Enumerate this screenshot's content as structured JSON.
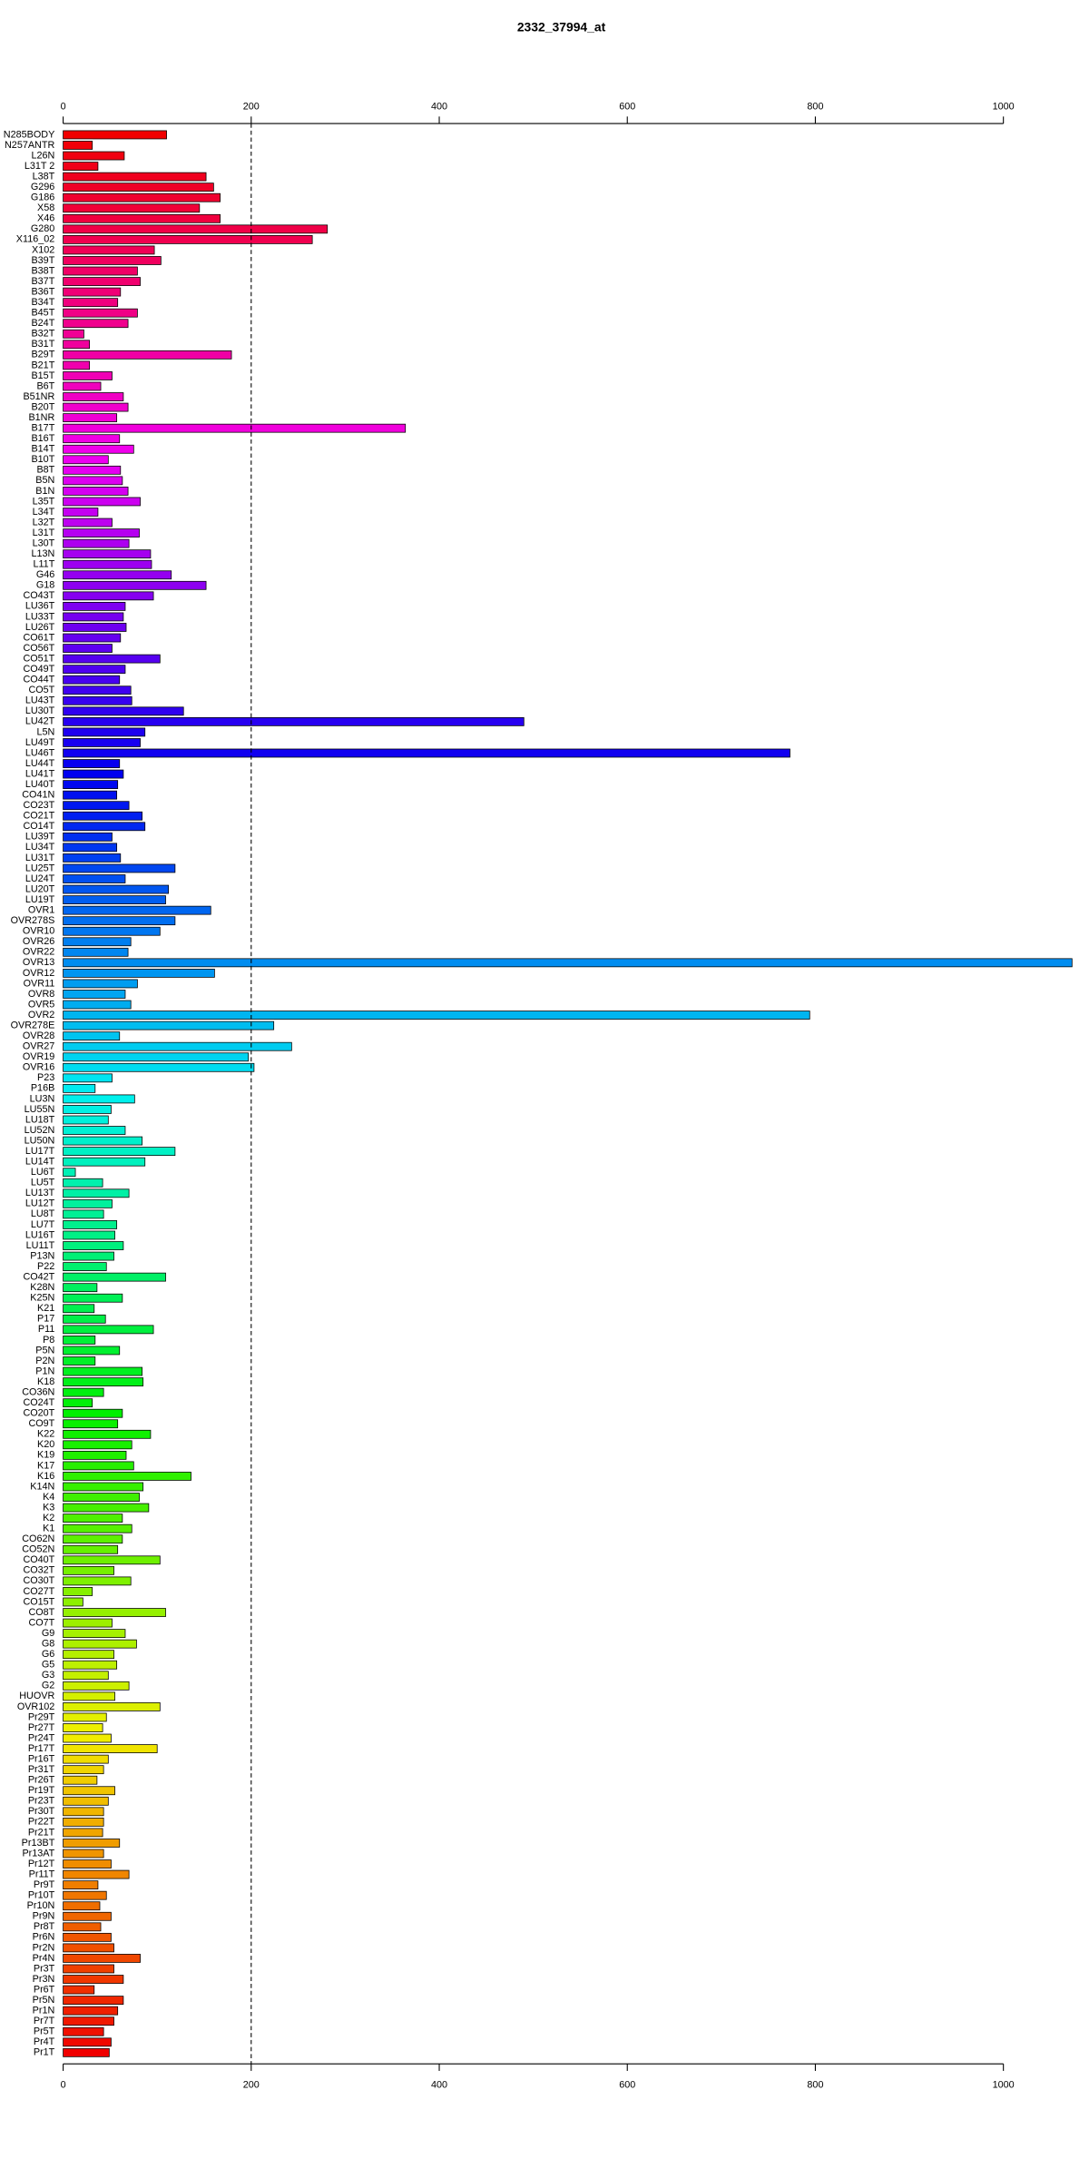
{
  "chart_data": {
    "type": "barh",
    "title": "2332_37994_at",
    "categories": [
      "N285BODY",
      "N257ANTR",
      "L26N",
      "L31T 2",
      "L38T",
      "G296",
      "G186",
      "X58",
      "X46",
      "G280",
      "X116_02",
      "X102",
      "B39T",
      "B38T",
      "B37T",
      "B36T",
      "B34T",
      "B45T",
      "B24T",
      "B32T",
      "B31T",
      "B29T",
      "B21T",
      "B15T",
      "B6T",
      "B51NR",
      "B20T",
      "B1NR",
      "B17T",
      "B16T",
      "B14T",
      "B10T",
      "B8T",
      "B5N",
      "B1N",
      "L35T",
      "L34T",
      "L32T",
      "L31T",
      "L30T",
      "L13N",
      "L11T",
      "G46",
      "G18",
      "CO43T",
      "LU36T",
      "LU33T",
      "LU26T",
      "CO61T",
      "CO56T",
      "CO51T",
      "CO49T",
      "CO44T",
      "CO5T",
      "LU43T",
      "LU30T",
      "LU42T",
      "L5N",
      "LU49T",
      "LU46T",
      "LU44T",
      "LU41T",
      "LU40T",
      "CO41N",
      "CO23T",
      "CO21T",
      "CO14T",
      "LU39T",
      "LU34T",
      "LU31T",
      "LU25T",
      "LU24T",
      "LU20T",
      "LU19T",
      "OVR1",
      "OVR278S",
      "OVR10",
      "OVR26",
      "OVR22",
      "OVR13",
      "OVR12",
      "OVR11",
      "OVR8",
      "OVR5",
      "OVR2",
      "OVR278E",
      "OVR28",
      "OVR27",
      "OVR19",
      "OVR16",
      "P23",
      "P16B",
      "LU3N",
      "LU55N",
      "LU18T",
      "LU52N",
      "LU50N",
      "LU17T",
      "LU14T",
      "LU6T",
      "LU5T",
      "LU13T",
      "LU12T",
      "LU8T",
      "LU7T",
      "LU16T",
      "LU11T",
      "P13N",
      "P22",
      "CO42T",
      "K28N",
      "K25N",
      "K21",
      "P17",
      "P11",
      "P8",
      "P5N",
      "P2N",
      "P1N",
      "K18",
      "CO36N",
      "CO24T",
      "CO20T",
      "CO9T",
      "K22",
      "K20",
      "K19",
      "K17",
      "K16",
      "K14N",
      "K4",
      "K3",
      "K2",
      "K1",
      "CO62N",
      "CO52N",
      "CO40T",
      "CO32T",
      "CO30T",
      "CO27T",
      "CO15T",
      "CO8T",
      "CO7T",
      "G9",
      "G8",
      "G6",
      "G5",
      "G3",
      "G2",
      "HUOVR",
      "OVR102",
      "Pr29T",
      "Pr27T",
      "Pr24T",
      "Pr17T",
      "Pr16T",
      "Pr31T",
      "Pr26T",
      "Pr19T",
      "Pr23T",
      "Pr30T",
      "Pr22T",
      "Pr21T",
      "Pr13BT",
      "Pr13AT",
      "Pr12T",
      "Pr11T",
      "Pr9T",
      "Pr10T",
      "Pr10N",
      "Pr9N",
      "Pr8T",
      "Pr6N",
      "Pr2N",
      "Pr4N",
      "Pr3T",
      "Pr3N",
      "Pr6T",
      "Pr5N",
      "Pr1N",
      "Pr7T",
      "Pr5T",
      "Pr4T",
      "Pr1T"
    ],
    "values": [
      110,
      31,
      65,
      37,
      152,
      160,
      167,
      145,
      167,
      281,
      265,
      97,
      104,
      79,
      82,
      61,
      58,
      79,
      69,
      22,
      28,
      179,
      28,
      52,
      40,
      64,
      69,
      57,
      364,
      60,
      75,
      48,
      61,
      63,
      69,
      82,
      37,
      52,
      81,
      70,
      93,
      94,
      115,
      152,
      96,
      66,
      64,
      67,
      61,
      52,
      103,
      66,
      60,
      72,
      73,
      128,
      490,
      87,
      82,
      773,
      60,
      64,
      58,
      57,
      70,
      84,
      87,
      52,
      57,
      61,
      119,
      66,
      112,
      109,
      157,
      119,
      103,
      72,
      69,
      1073,
      161,
      79,
      66,
      72,
      794,
      224,
      60,
      243,
      197,
      203,
      52,
      34,
      76,
      51,
      48,
      66,
      84,
      119,
      87,
      13,
      42,
      70,
      52,
      43,
      57,
      55,
      64,
      54,
      46,
      109,
      36,
      63,
      33,
      45,
      96,
      34,
      60,
      34,
      84,
      85,
      43,
      31,
      63,
      58,
      93,
      73,
      67,
      75,
      136,
      85,
      81,
      91,
      63,
      73,
      63,
      58,
      103,
      54,
      72,
      31,
      21,
      109,
      52,
      66,
      78,
      54,
      57,
      48,
      70,
      55,
      103,
      46,
      42,
      51,
      100,
      48,
      43,
      36,
      55,
      48,
      43,
      43,
      42,
      60,
      43,
      51,
      70,
      37,
      46,
      39,
      51,
      40,
      51,
      54,
      82,
      54,
      64,
      33,
      64,
      58,
      54,
      43,
      51,
      49
    ],
    "palette": "rainbow",
    "xlim": [
      0,
      1000
    ],
    "xticks": [
      0,
      200,
      400,
      600,
      800,
      1000
    ],
    "reference_line": 200
  }
}
